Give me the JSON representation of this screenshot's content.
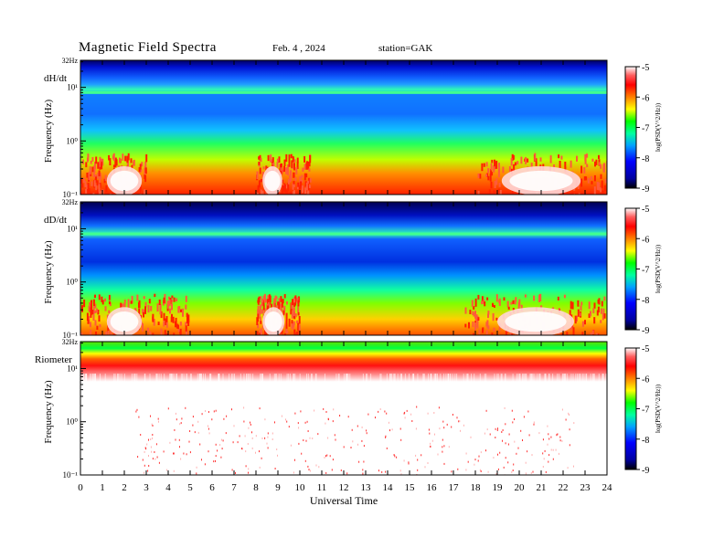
{
  "header": {
    "title": "Magnetic  Field  Spectra",
    "date": "Feb. 4  , 2024",
    "station": "station=GAK"
  },
  "chart_data": [
    {
      "type": "heatmap",
      "panel_label": "dH/dt",
      "ylabel": "Frequency  (Hz)",
      "top_label": "32Hz",
      "y_scale": "log",
      "ylim": [
        0.1,
        32
      ],
      "yticks": [
        "10⁻¹",
        "10⁰",
        "10¹"
      ],
      "xlim": [
        0,
        24
      ],
      "colorbar": {
        "label": "log(PSD(V^2/Hz))",
        "range": [
          -9,
          -5
        ],
        "ticks": [
          "-5",
          "-6",
          "-7",
          "-8",
          "-9"
        ]
      },
      "features": {
        "low_freq_activity_hours": [
          [
            0,
            3
          ],
          [
            8,
            10.5
          ],
          [
            18,
            24
          ]
        ],
        "saturated_blobs": [
          [
            1.2,
            2.8
          ],
          [
            8.3,
            9.2
          ],
          [
            19.2,
            22.8
          ]
        ],
        "persistent_line_hz": 8
      }
    },
    {
      "type": "heatmap",
      "panel_label": "dD/dt",
      "ylabel": "Frequency  (Hz)",
      "top_label": "32Hz",
      "y_scale": "log",
      "ylim": [
        0.1,
        32
      ],
      "yticks": [
        "10⁻¹",
        "10⁰",
        "10¹"
      ],
      "xlim": [
        0,
        24
      ],
      "colorbar": {
        "label": "log(PSD(V^2/Hz))",
        "range": [
          -9,
          -5
        ],
        "ticks": [
          "-5",
          "-6",
          "-7",
          "-8",
          "-9"
        ]
      },
      "features": {
        "low_freq_activity_hours": [
          [
            0,
            5
          ],
          [
            8,
            10
          ],
          [
            17.5,
            24
          ]
        ],
        "saturated_blobs": [
          [
            1.2,
            2.8
          ],
          [
            8.3,
            9.3
          ],
          [
            19,
            22.5
          ]
        ],
        "persistent_line_hz": 8
      }
    },
    {
      "type": "heatmap",
      "panel_label": "Riometer",
      "ylabel": "Frequency  (Hz)",
      "top_label": "32Hz",
      "y_scale": "log",
      "ylim": [
        0.1,
        32
      ],
      "yticks": [
        "10⁻¹",
        "10⁰",
        "10¹"
      ],
      "xlim": [
        0,
        24
      ],
      "colorbar": {
        "label": "log(PSD(V^2/Hz))",
        "range": [
          -9,
          -5
        ],
        "ticks": [
          "-5",
          "-6",
          "-7",
          "-8",
          "-9"
        ]
      },
      "features": {
        "high_freq_band_hz": [
          8,
          32
        ],
        "sparse_low_freq_points": true
      }
    }
  ],
  "xaxis": {
    "label": "Universal Time",
    "ticks": [
      "0",
      "1",
      "2",
      "3",
      "4",
      "5",
      "6",
      "7",
      "8",
      "9",
      "10",
      "11",
      "12",
      "13",
      "14",
      "15",
      "16",
      "17",
      "18",
      "19",
      "20",
      "21",
      "22",
      "23",
      "24"
    ]
  }
}
